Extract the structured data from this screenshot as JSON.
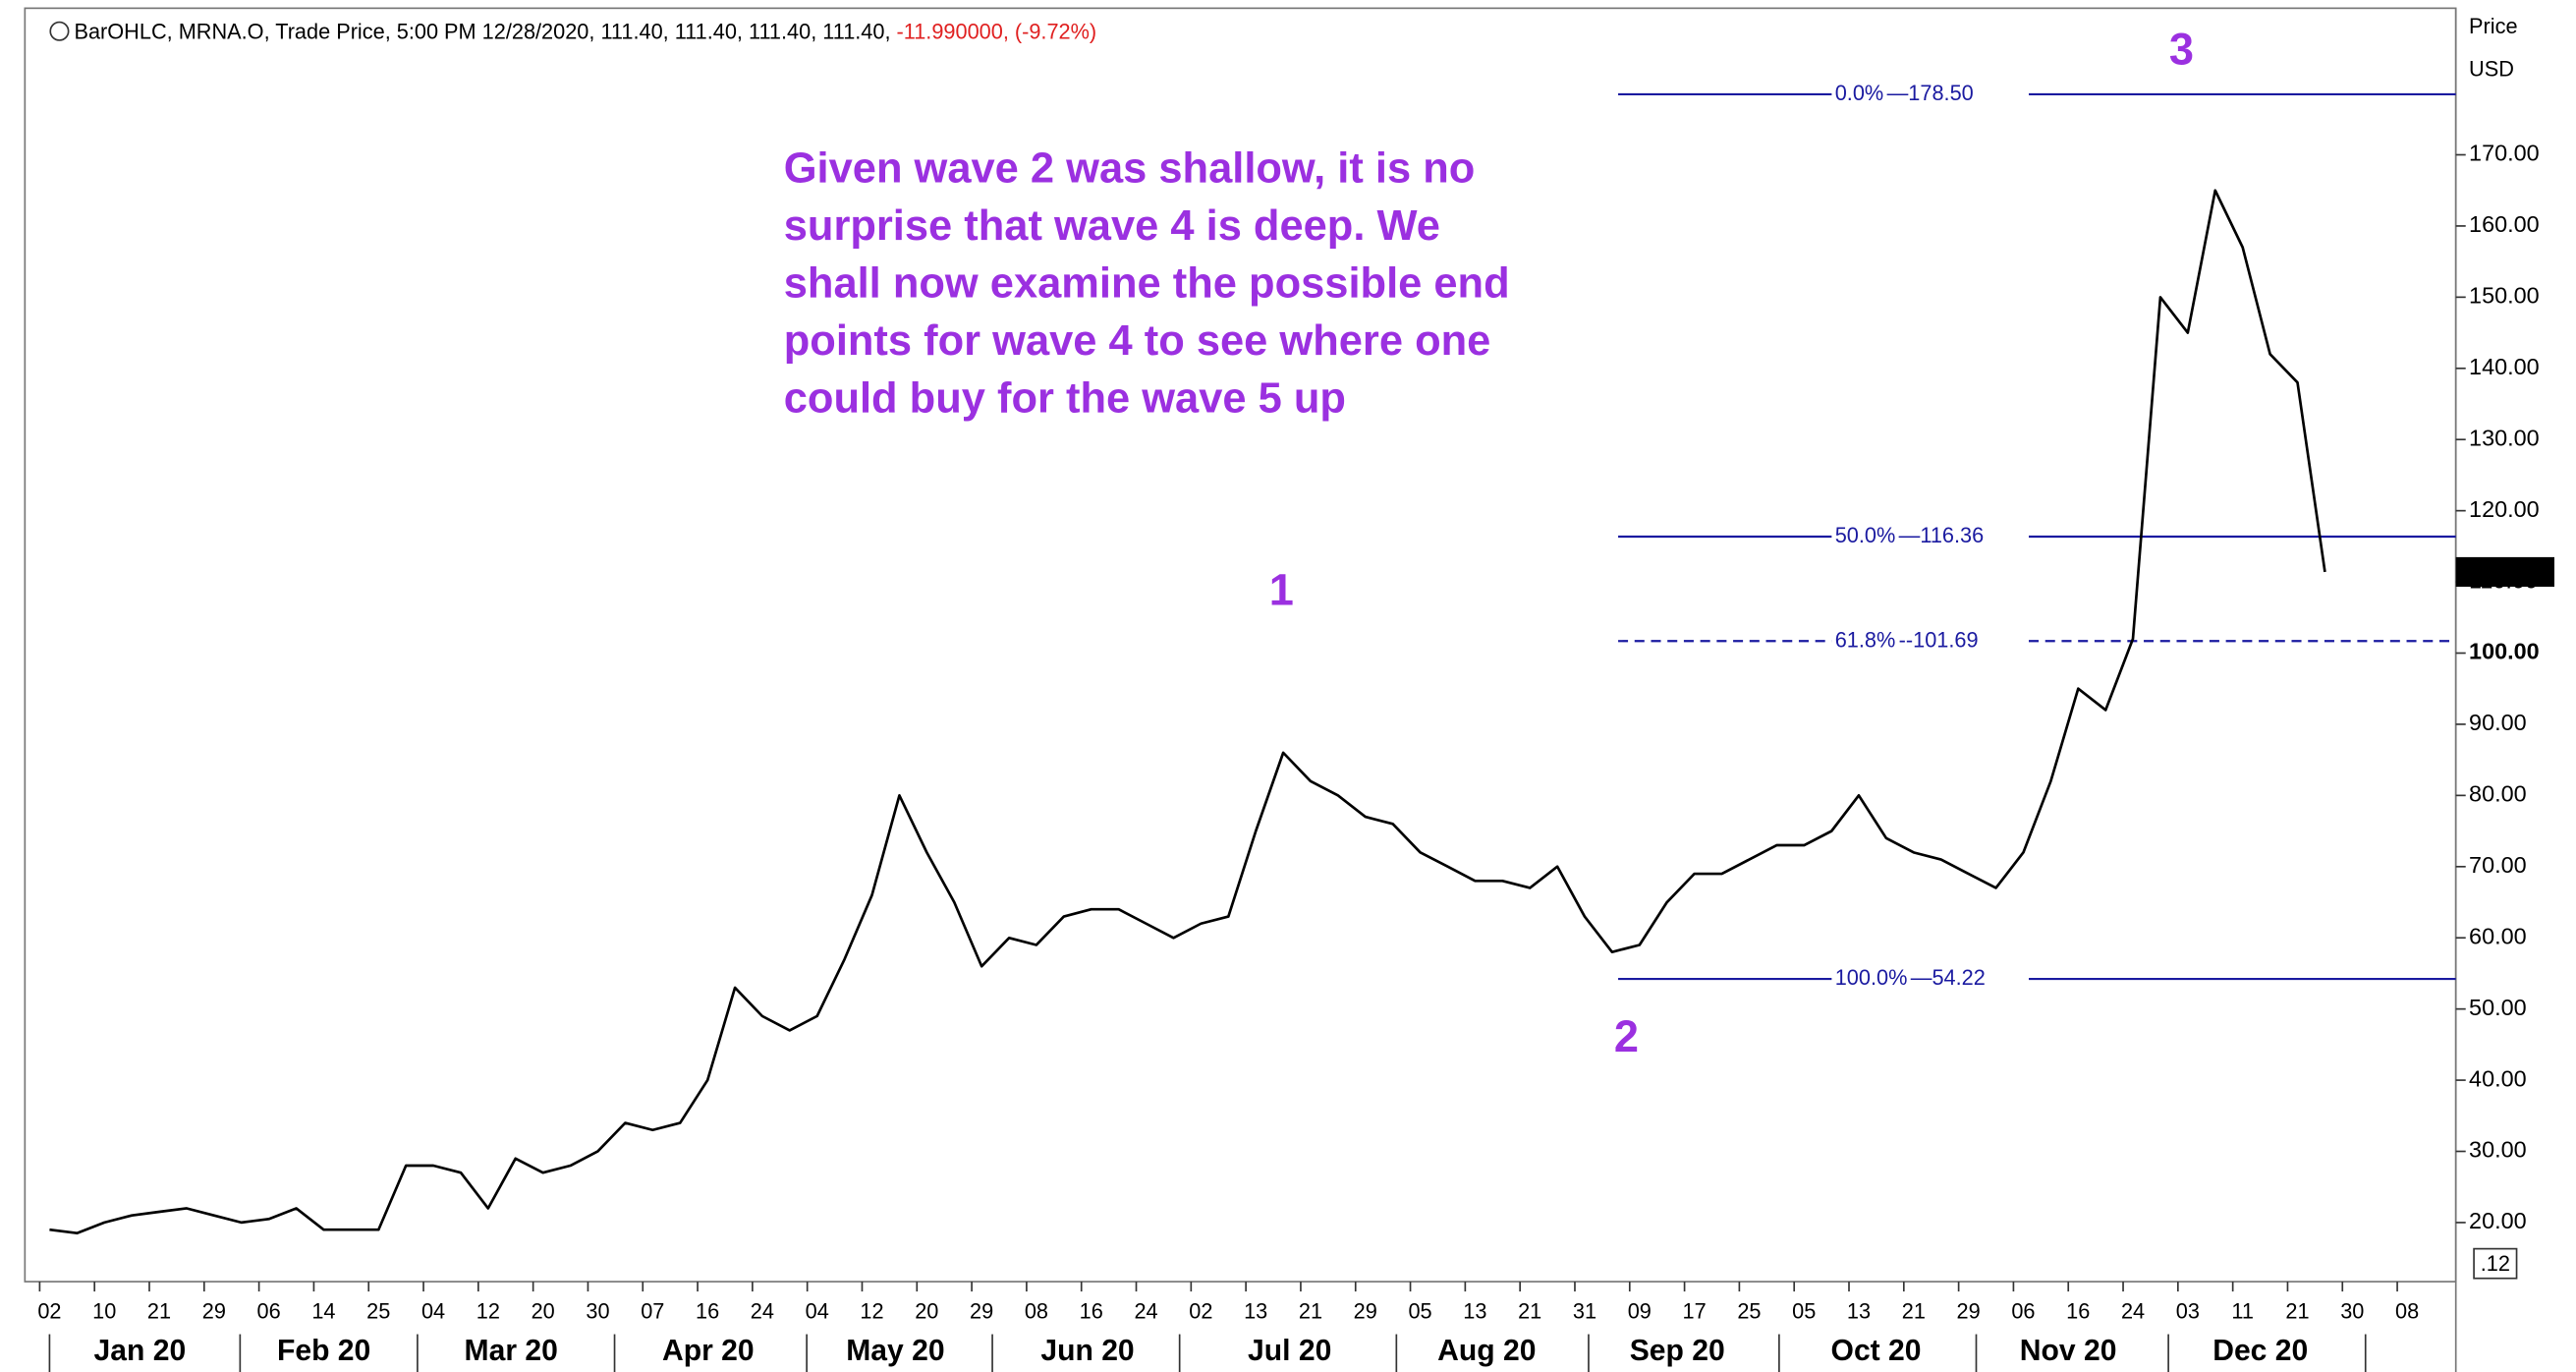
{
  "chart_data": {
    "type": "line",
    "header": {
      "text": "BarOHLC, MRNA.O, Trade Price, 5:00 PM 12/28/2020, 111.40, 111.40, 111.40, 111.40, ",
      "change": "-11.990000, (-9.72%)"
    },
    "y_axis_label": [
      "Price",
      "USD"
    ],
    "annotation": [
      "Given wave 2 was shallow, it is no",
      "surprise that wave 4 is deep. We",
      "shall now examine the possible end",
      "points for wave 4 to see where one",
      "could buy for the wave 5 up"
    ],
    "waves": [
      "1",
      "2",
      "3"
    ],
    "last_price": {
      "value": 111.4,
      "label": "111.40"
    },
    "corner_label": ".12",
    "fib_levels": [
      {
        "label": "0.0%",
        "value": 178.5,
        "value_label": "178.50",
        "dashed": false
      },
      {
        "label": "50.0%",
        "value": 116.36,
        "value_label": "116.36",
        "dashed": false
      },
      {
        "label": "61.8%",
        "value": 101.69,
        "value_label": "101.69",
        "dashed": true
      },
      {
        "label": "100.0%",
        "value": 54.22,
        "value_label": "54.22",
        "dashed": false
      }
    ],
    "fib_color": "#1a1aa0",
    "months": [
      "Jan 20",
      "Feb 20",
      "Mar 20",
      "Apr 20",
      "May 20",
      "Jun 20",
      "Jul 20",
      "Aug 20",
      "Sep 20",
      "Oct 20",
      "Nov 20",
      "Dec 20"
    ],
    "categories": [
      "02",
      null,
      "10",
      null,
      "21",
      null,
      "29",
      null,
      "06",
      null,
      "14",
      null,
      "25",
      null,
      "04",
      null,
      "12",
      null,
      "20",
      null,
      "30",
      null,
      "07",
      null,
      "16",
      null,
      "24",
      null,
      "04",
      null,
      "12",
      null,
      "20",
      null,
      "29",
      null,
      "08",
      null,
      "16",
      null,
      "24",
      null,
      "02",
      null,
      "13",
      null,
      "21",
      null,
      "29",
      null,
      "05",
      null,
      "13",
      null,
      "21",
      null,
      "31",
      null,
      "09",
      null,
      "17",
      null,
      "25",
      null,
      "05",
      null,
      "13",
      null,
      "21",
      null,
      "29",
      null,
      "06",
      null,
      "16",
      null,
      "24",
      null,
      "03",
      null,
      "11",
      null,
      "21",
      null,
      "30",
      null,
      "08"
    ],
    "series": [
      {
        "name": "MRNA.O",
        "color": "#000000",
        "values": [
          19,
          18.5,
          20,
          21,
          21.5,
          22,
          21,
          20,
          20.5,
          22,
          19,
          19,
          19,
          28,
          28,
          27,
          22,
          29,
          27,
          28,
          30,
          34,
          33,
          34,
          40,
          53,
          49,
          47,
          49,
          57,
          66,
          80,
          72,
          65,
          56,
          60,
          59,
          63,
          64,
          64,
          62,
          60,
          62,
          63,
          75,
          86,
          82,
          80,
          77,
          76,
          72,
          70,
          68,
          68,
          67,
          70,
          63,
          58,
          59,
          65,
          69,
          69,
          71,
          73,
          73,
          75,
          80,
          74,
          72,
          71,
          69,
          67,
          72,
          82,
          95,
          92,
          102,
          150,
          145,
          165,
          157,
          142,
          138,
          111.4,
          null,
          null,
          null
        ]
      }
    ],
    "ylim": [
      11.7,
      189.9
    ],
    "yticks": [
      {
        "value": 20,
        "label": "20.00"
      },
      {
        "value": 30,
        "label": "30.00"
      },
      {
        "value": 40,
        "label": "40.00"
      },
      {
        "value": 50,
        "label": "50.00"
      },
      {
        "value": 60,
        "label": "60.00"
      },
      {
        "value": 70,
        "label": "70.00"
      },
      {
        "value": 80,
        "label": "80.00"
      },
      {
        "value": 90,
        "label": "90.00"
      },
      {
        "value": 100,
        "label": "100.00"
      },
      {
        "value": 110,
        "label": "110.00"
      },
      {
        "value": 120,
        "label": "120.00"
      },
      {
        "value": 130,
        "label": "130.00"
      },
      {
        "value": 140,
        "label": "140.00"
      },
      {
        "value": 150,
        "label": "150.00"
      },
      {
        "value": 160,
        "label": "160.00"
      },
      {
        "value": 170,
        "label": "170.00"
      }
    ]
  }
}
